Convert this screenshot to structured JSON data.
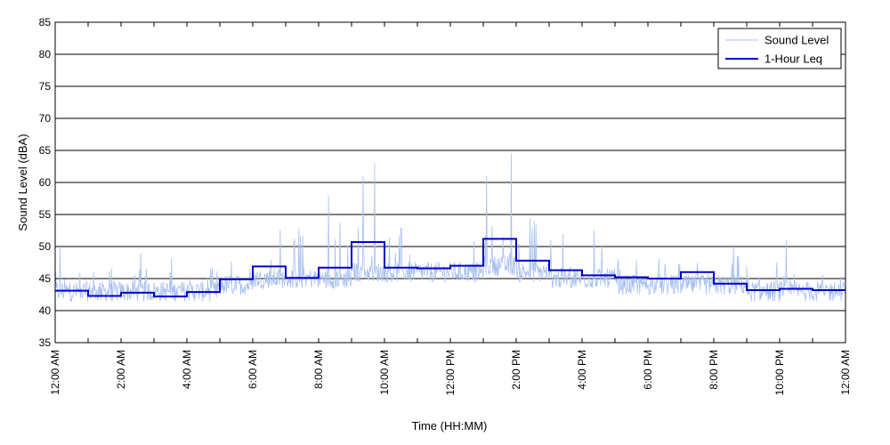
{
  "chart_data": {
    "type": "line",
    "title": "",
    "xlabel": "Time (HH:MM)",
    "ylabel": "Sound Level (dBA)",
    "ylim": [
      35,
      85
    ],
    "yticks": [
      35,
      40,
      45,
      50,
      55,
      60,
      65,
      70,
      75,
      80,
      85
    ],
    "xlim": [
      0,
      24
    ],
    "xticks": [
      0,
      2,
      4,
      6,
      8,
      10,
      12,
      14,
      16,
      18,
      20,
      22,
      24
    ],
    "xtick_labels": [
      "12:00 AM",
      "2:00 AM",
      "4:00 AM",
      "6:00 AM",
      "8:00 AM",
      "10:00 AM",
      "12:00 PM",
      "2:00 PM",
      "4:00 PM",
      "6:00 PM",
      "8:00 PM",
      "10:00 PM",
      "12:00 AM"
    ],
    "grid": {
      "horizontal": true,
      "vertical": false
    },
    "legend": {
      "position": "top-right"
    },
    "series": [
      {
        "name": "Sound Level",
        "color": "#a8c0f0",
        "style": "thin",
        "hourly_base": [
          42,
          42,
          42,
          42,
          42,
          43,
          44,
          44,
          44,
          45,
          45,
          45,
          45,
          46,
          45,
          44,
          44,
          43,
          43,
          43,
          43,
          42,
          42,
          42
        ],
        "notable_peaks": [
          {
            "x": 0.15,
            "y": 50
          },
          {
            "x": 2.6,
            "y": 49
          },
          {
            "x": 8.3,
            "y": 58
          },
          {
            "x": 9.35,
            "y": 61
          },
          {
            "x": 9.7,
            "y": 63
          },
          {
            "x": 13.1,
            "y": 61
          },
          {
            "x": 13.85,
            "y": 64.5
          },
          {
            "x": 14.55,
            "y": 54
          },
          {
            "x": 20.6,
            "y": 50
          },
          {
            "x": 22.2,
            "y": 51
          }
        ]
      },
      {
        "name": "1-Hour Leq",
        "color": "#0000cc",
        "style": "step",
        "x_start": 0,
        "step": 1,
        "values": [
          43.1,
          42.3,
          42.8,
          42.2,
          42.9,
          44.9,
          46.9,
          45.1,
          46.7,
          50.7,
          46.7,
          46.6,
          47.0,
          51.2,
          47.8,
          46.3,
          45.5,
          45.2,
          45.0,
          46.0,
          44.2,
          43.2,
          43.4,
          43.2
        ]
      }
    ]
  }
}
